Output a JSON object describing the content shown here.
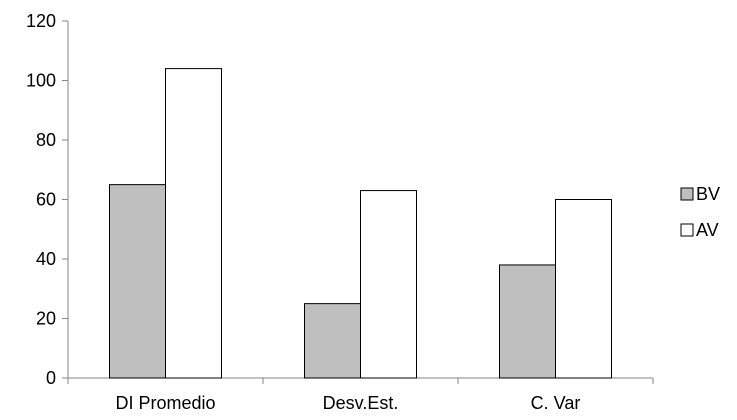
{
  "chart_data": {
    "type": "bar",
    "categories": [
      "DI Promedio",
      "Desv.Est.",
      "C. Var"
    ],
    "series": [
      {
        "name": "BV",
        "values": [
          65,
          25,
          38
        ],
        "color": "#bfbfbf"
      },
      {
        "name": "AV",
        "values": [
          104,
          63,
          60
        ],
        "color": "#ffffff"
      }
    ],
    "ylim": [
      0,
      120
    ],
    "yticks": [
      0,
      20,
      40,
      60,
      80,
      100,
      120
    ],
    "xlabel": "",
    "ylabel": "",
    "title": "",
    "grid": false,
    "legend": "right"
  }
}
